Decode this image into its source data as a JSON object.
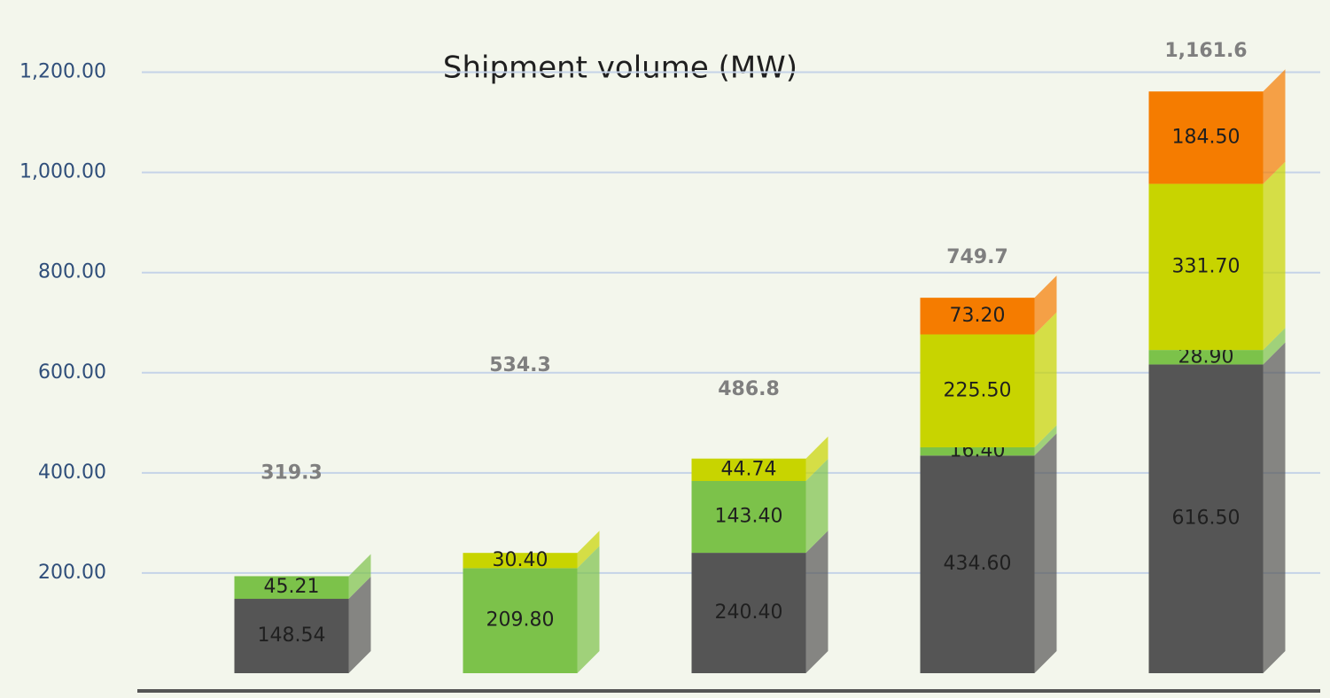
{
  "chart_data": {
    "type": "stacked-bar",
    "title": "Shipment volume (MW)",
    "categories": [
      null,
      null,
      null,
      null,
      null
    ],
    "series": [
      {
        "color": "#555555",
        "values": [
          148.54,
          null,
          240.4,
          434.6,
          616.5
        ],
        "value_labels": [
          "148.54",
          null,
          "240.40",
          "434.60",
          "616.50"
        ]
      },
      {
        "color": "#7cc24a",
        "values": [
          45.21,
          209.8,
          143.4,
          16.4,
          28.9
        ],
        "value_labels": [
          "45.21",
          "209.80",
          "143.40",
          "16.40",
          "28.90"
        ]
      },
      {
        "color": "#c8d400",
        "values": [
          null,
          30.4,
          44.74,
          225.5,
          331.7
        ],
        "value_labels": [
          null,
          "30.40",
          "44.74",
          "225.50",
          "331.70"
        ]
      },
      {
        "color": "#f57c00",
        "values": [
          null,
          null,
          null,
          73.2,
          184.5
        ],
        "value_labels": [
          null,
          null,
          null,
          "73.20",
          "184.50"
        ]
      }
    ],
    "totals": {
      "values": [
        319.3,
        534.3,
        486.8,
        749.7,
        1161.6
      ],
      "value_labels": [
        "319.3",
        "534.3",
        "486.8",
        "749.7",
        "1,161.6"
      ]
    },
    "ylim": [
      0,
      1300
    ],
    "yticks": [
      {
        "value": 200,
        "label": "200.00"
      },
      {
        "value": 400,
        "label": "400.00"
      },
      {
        "value": 600,
        "label": "600.00"
      },
      {
        "value": 800,
        "label": "800.00"
      },
      {
        "value": 1000,
        "label": "1,000.00"
      },
      {
        "value": 1200,
        "label": "1,200.00"
      }
    ],
    "grid": true
  }
}
